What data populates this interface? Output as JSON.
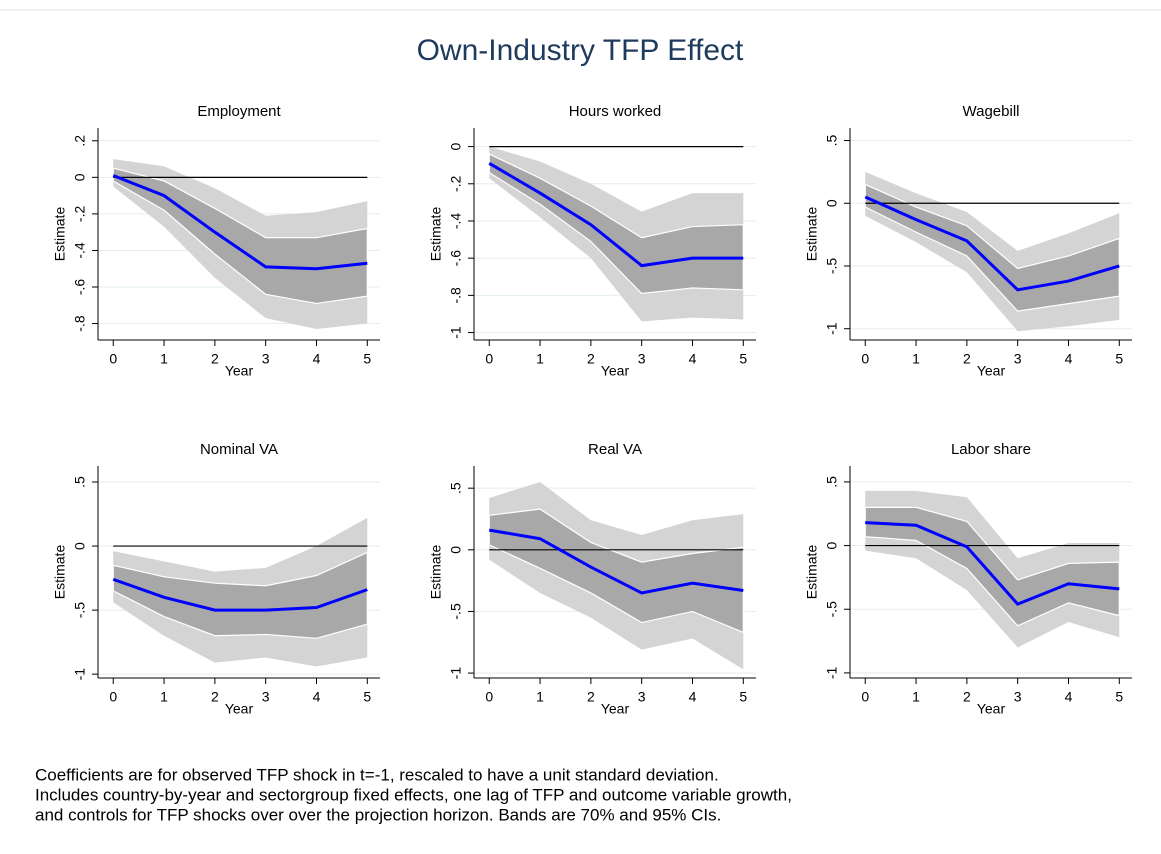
{
  "title": "Own-Industry TFP Effect",
  "chart_data": [
    {
      "type": "line",
      "title": "Employment",
      "xlabel": "Year",
      "ylabel": "Estimate",
      "x": [
        0,
        1,
        2,
        3,
        4,
        5
      ],
      "xlim": [
        -0.3,
        5.25
      ],
      "xticks": [
        0,
        1,
        2,
        3,
        4,
        5
      ],
      "ylim": [
        -0.89,
        0.27
      ],
      "yticks": [
        {
          "value": 0.2,
          "label": ".2"
        },
        0,
        {
          "value": -0.2,
          "label": "-.2"
        },
        {
          "value": -0.4,
          "label": "-.4"
        },
        {
          "value": -0.6,
          "label": "-.6"
        },
        {
          "value": -0.8,
          "label": "-.8"
        }
      ],
      "grid": true,
      "reference_line": 0,
      "color": "#0000ff",
      "values": [
        0.01,
        -0.1,
        -0.3,
        -0.49,
        -0.5,
        -0.47
      ],
      "bands": [
        {
          "lower": [
            -0.05,
            -0.27,
            -0.55,
            -0.77,
            -0.83,
            -0.8
          ],
          "upper": [
            0.1,
            0.06,
            -0.06,
            -0.21,
            -0.19,
            -0.13
          ],
          "color": "#d4d4d4"
        },
        {
          "lower": [
            -0.02,
            -0.18,
            -0.42,
            -0.64,
            -0.69,
            -0.65
          ],
          "upper": [
            0.05,
            -0.02,
            -0.17,
            -0.33,
            -0.33,
            -0.28
          ],
          "color": "#a8a8a8"
        }
      ]
    },
    {
      "type": "line",
      "title": "Hours worked",
      "xlabel": "Year",
      "ylabel": "Estimate",
      "x": [
        0,
        1,
        2,
        3,
        4,
        5
      ],
      "xlim": [
        -0.3,
        5.25
      ],
      "xticks": [
        0,
        1,
        2,
        3,
        4,
        5
      ],
      "ylim": [
        -1.04,
        0.1
      ],
      "yticks": [
        0,
        {
          "value": -0.2,
          "label": "-.2"
        },
        {
          "value": -0.4,
          "label": "-.4"
        },
        {
          "value": -0.6,
          "label": "-.6"
        },
        {
          "value": -0.8,
          "label": "-.8"
        },
        -1
      ],
      "grid": true,
      "reference_line": 0,
      "color": "#0000ff",
      "values": [
        -0.09,
        -0.25,
        -0.42,
        -0.64,
        -0.6,
        -0.6
      ],
      "bands": [
        {
          "lower": [
            -0.17,
            -0.38,
            -0.6,
            -0.94,
            -0.92,
            -0.93
          ],
          "upper": [
            0,
            -0.08,
            -0.2,
            -0.35,
            -0.25,
            -0.25
          ],
          "color": "#d4d4d4"
        },
        {
          "lower": [
            -0.14,
            -0.31,
            -0.51,
            -0.79,
            -0.76,
            -0.77
          ],
          "upper": [
            -0.04,
            -0.17,
            -0.32,
            -0.49,
            -0.43,
            -0.42
          ],
          "color": "#a8a8a8"
        }
      ]
    },
    {
      "type": "line",
      "title": "Wagebill",
      "xlabel": "Year",
      "ylabel": "Estimate",
      "x": [
        0,
        1,
        2,
        3,
        4,
        5
      ],
      "xlim": [
        -0.3,
        5.25
      ],
      "xticks": [
        0,
        1,
        2,
        3,
        4,
        5
      ],
      "ylim": [
        -1.09,
        0.6
      ],
      "yticks": [
        {
          "value": 0.5,
          "label": ".5"
        },
        0,
        {
          "value": -0.5,
          "label": "-.5"
        },
        -1
      ],
      "grid": true,
      "reference_line": 0,
      "color": "#0000ff",
      "values": [
        0.05,
        -0.13,
        -0.3,
        -0.69,
        -0.62,
        -0.5
      ],
      "bands": [
        {
          "lower": [
            -0.1,
            -0.31,
            -0.55,
            -1.02,
            -0.98,
            -0.93
          ],
          "upper": [
            0.25,
            0.08,
            -0.07,
            -0.38,
            -0.24,
            -0.08
          ],
          "color": "#d4d4d4"
        },
        {
          "lower": [
            -0.03,
            -0.23,
            -0.42,
            -0.86,
            -0.8,
            -0.74
          ],
          "upper": [
            0.15,
            -0.03,
            -0.18,
            -0.52,
            -0.42,
            -0.28
          ],
          "color": "#a8a8a8"
        }
      ]
    },
    {
      "type": "line",
      "title": "Nominal VA",
      "xlabel": "Year",
      "ylabel": "Estimate",
      "x": [
        0,
        1,
        2,
        3,
        4,
        5
      ],
      "xlim": [
        -0.3,
        5.25
      ],
      "xticks": [
        0,
        1,
        2,
        3,
        4,
        5
      ],
      "ylim": [
        -1.03,
        0.625
      ],
      "yticks": [
        {
          "value": 0.5,
          "label": ".5"
        },
        0,
        {
          "value": -0.5,
          "label": "-.5"
        },
        -1
      ],
      "grid": true,
      "reference_line": 0,
      "color": "#0000ff",
      "values": [
        -0.26,
        -0.4,
        -0.5,
        -0.5,
        -0.48,
        -0.34
      ],
      "bands": [
        {
          "lower": [
            -0.44,
            -0.7,
            -0.91,
            -0.87,
            -0.94,
            -0.87
          ],
          "upper": [
            -0.04,
            -0.12,
            -0.2,
            -0.17,
            0,
            0.22
          ],
          "color": "#d4d4d4"
        },
        {
          "lower": [
            -0.35,
            -0.55,
            -0.7,
            -0.69,
            -0.72,
            -0.61
          ],
          "upper": [
            -0.15,
            -0.24,
            -0.29,
            -0.31,
            -0.23,
            -0.05
          ],
          "color": "#a8a8a8"
        }
      ]
    },
    {
      "type": "line",
      "title": "Real VA",
      "xlabel": "Year",
      "ylabel": "Estimate",
      "x": [
        0,
        1,
        2,
        3,
        4,
        5
      ],
      "xlim": [
        -0.3,
        5.25
      ],
      "xticks": [
        0,
        1,
        2,
        3,
        4,
        5
      ],
      "ylim": [
        -1.04,
        0.68
      ],
      "yticks": [
        {
          "value": 0.5,
          "label": ".5"
        },
        0,
        {
          "value": -0.5,
          "label": "-.5"
        },
        -1
      ],
      "grid": true,
      "reference_line": 0,
      "color": "#0000ff",
      "values": [
        0.16,
        0.09,
        -0.14,
        -0.35,
        -0.27,
        -0.33
      ],
      "bands": [
        {
          "lower": [
            -0.08,
            -0.35,
            -0.55,
            -0.81,
            -0.72,
            -0.97
          ],
          "upper": [
            0.42,
            0.55,
            0.24,
            0.12,
            0.24,
            0.29
          ],
          "color": "#d4d4d4"
        },
        {
          "lower": [
            0.04,
            -0.15,
            -0.35,
            -0.59,
            -0.5,
            -0.67
          ],
          "upper": [
            0.28,
            0.33,
            0.06,
            -0.1,
            -0.03,
            0.02
          ],
          "color": "#a8a8a8"
        }
      ]
    },
    {
      "type": "line",
      "title": "Labor share",
      "xlabel": "Year",
      "ylabel": "Estimate",
      "x": [
        0,
        1,
        2,
        3,
        4,
        5
      ],
      "xlim": [
        -0.3,
        5.25
      ],
      "xticks": [
        0,
        1,
        2,
        3,
        4,
        5
      ],
      "ylim": [
        -1.04,
        0.625
      ],
      "yticks": [
        {
          "value": 0.5,
          "label": ".5"
        },
        0,
        {
          "value": -0.5,
          "label": "-.5"
        },
        -1
      ],
      "grid": true,
      "reference_line": 0,
      "color": "#0000ff",
      "values": [
        0.18,
        0.16,
        -0.01,
        -0.46,
        -0.3,
        -0.34
      ],
      "bands": [
        {
          "lower": [
            -0.04,
            -0.1,
            -0.35,
            -0.8,
            -0.6,
            -0.72
          ],
          "upper": [
            0.43,
            0.43,
            0.38,
            -0.1,
            0.02,
            0.02
          ],
          "color": "#d4d4d4"
        },
        {
          "lower": [
            0.07,
            0.04,
            -0.18,
            -0.63,
            -0.45,
            -0.55
          ],
          "upper": [
            0.3,
            0.3,
            0.19,
            -0.27,
            -0.14,
            -0.13
          ],
          "color": "#a8a8a8"
        }
      ]
    }
  ],
  "note": [
    "Coefficients are for observed TFP shock in t=-1, rescaled to have a unit standard deviation.",
    "Includes country-by-year and sectorgroup fixed effects, one lag of TFP and outcome variable growth,",
    "and controls for TFP shocks over over the projection horizon. Bands are 70% and 95% CIs."
  ]
}
